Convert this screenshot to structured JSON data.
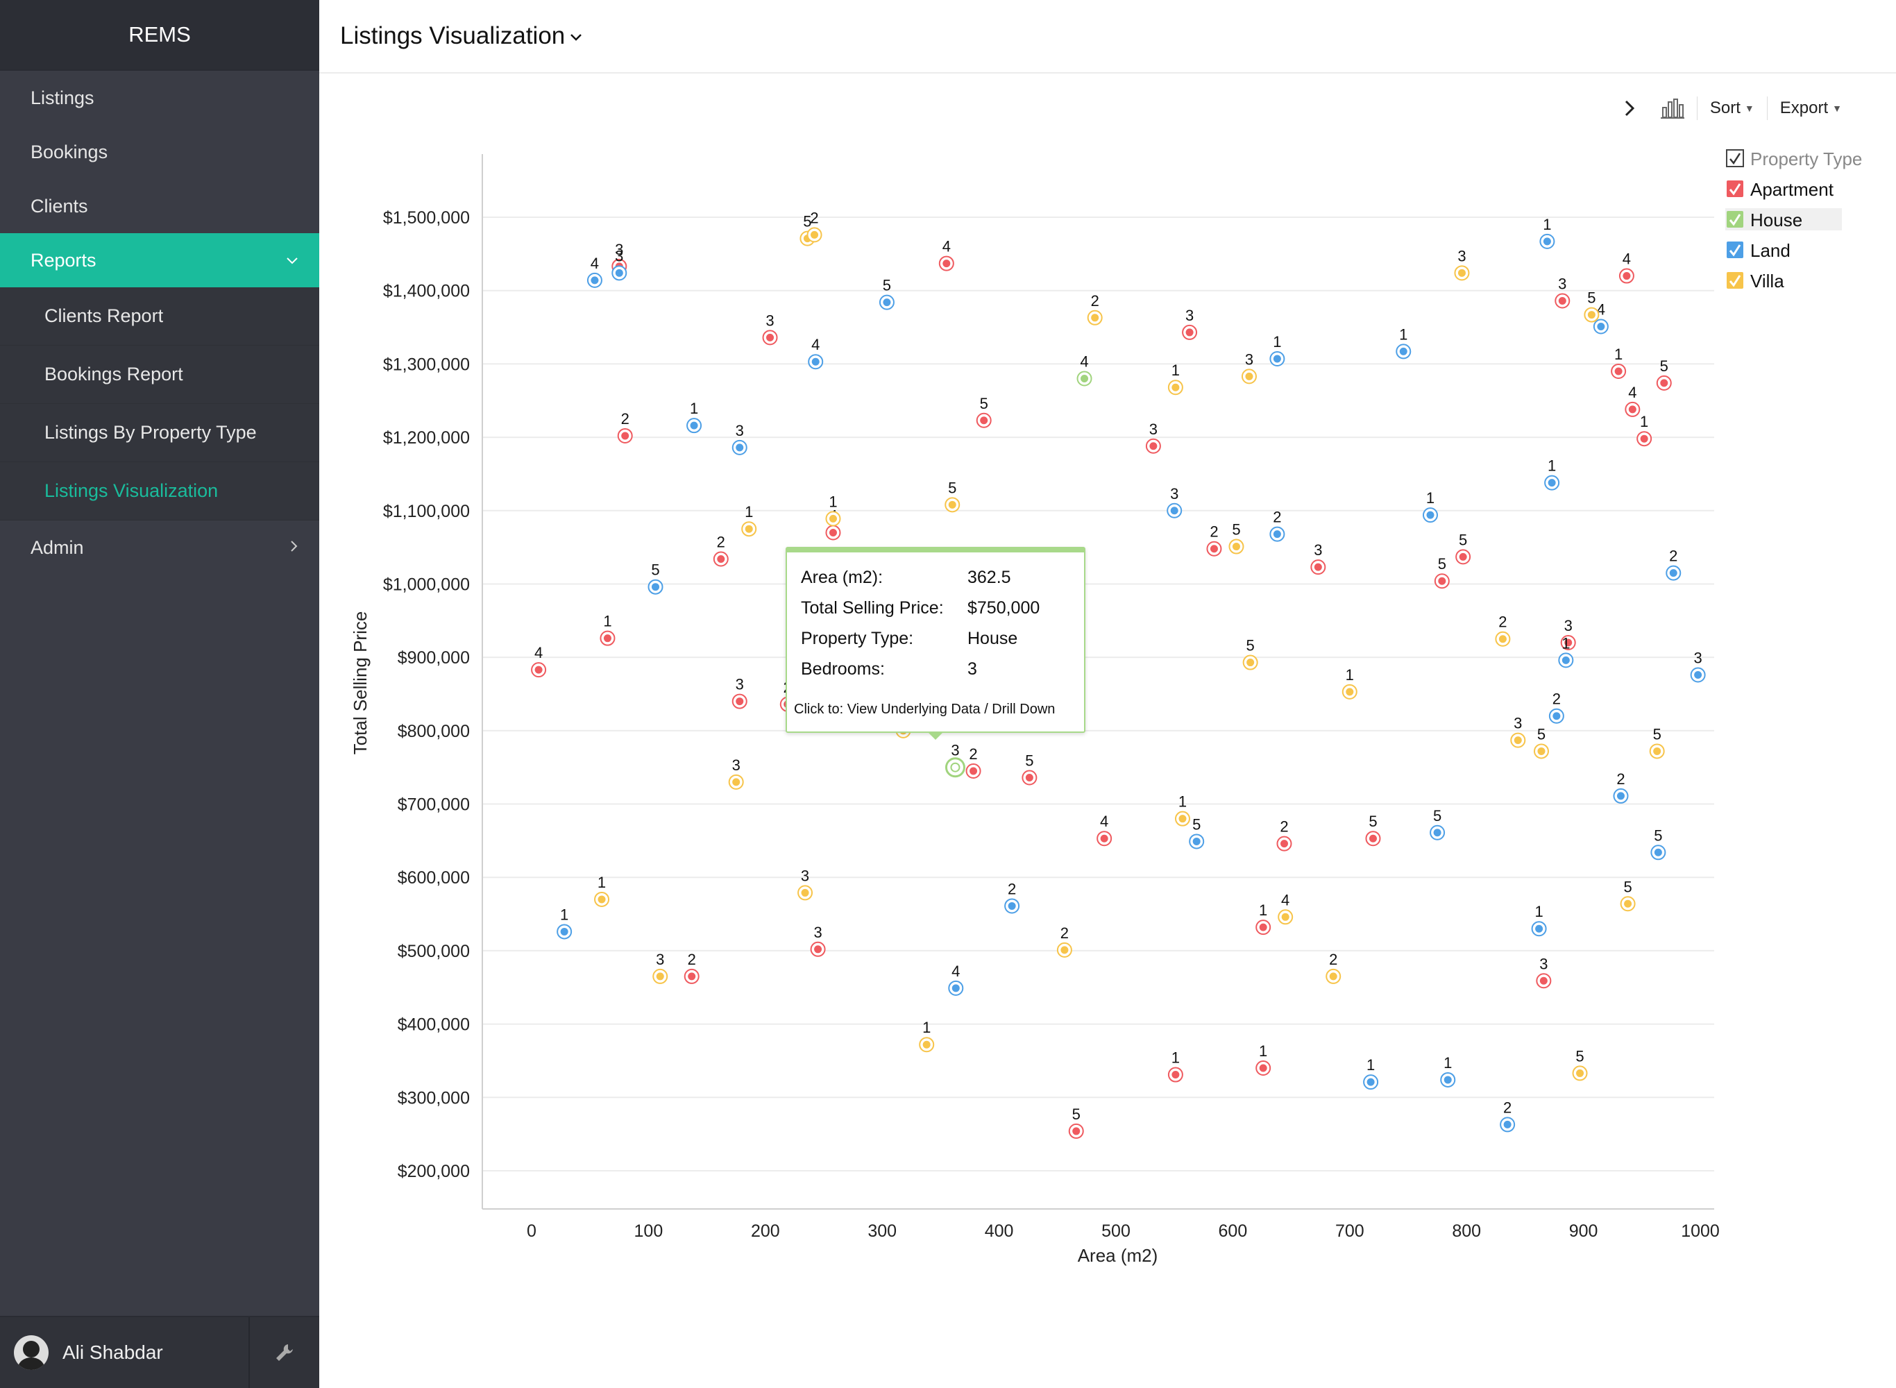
{
  "app": {
    "brand": "REMS"
  },
  "sidebar": {
    "items": [
      {
        "label": "Listings"
      },
      {
        "label": "Bookings"
      },
      {
        "label": "Clients"
      },
      {
        "label": "Reports"
      },
      {
        "label": "Admin"
      }
    ],
    "reports_sub": [
      {
        "label": "Clients Report"
      },
      {
        "label": "Bookings Report"
      },
      {
        "label": "Listings By Property Type"
      },
      {
        "label": "Listings Visualization"
      }
    ]
  },
  "user": {
    "name": "Ali Shabdar"
  },
  "header": {
    "title": "Listings Visualization"
  },
  "toolbar": {
    "sort_label": "Sort",
    "export_label": "Export"
  },
  "tooltip": {
    "area_key": "Area (m2):",
    "area_val": "362.5",
    "price_key": "Total Selling Price:",
    "price_val": "$750,000",
    "type_key": "Property Type:",
    "type_val": "House",
    "bed_key": "Bedrooms:",
    "bed_val": "3",
    "foot_prefix": "Click to:",
    "foot_text": "View Underlying Data / Drill Down"
  },
  "colors": {
    "Apartment": "#ef5a5f",
    "House": "#a1d47e",
    "Land": "#4d9fe6",
    "Villa": "#f7c44a",
    "accent": "#1abc9c"
  },
  "chart_data": {
    "type": "scatter",
    "xlabel": "Area (m2)",
    "ylabel": "Total Selling Price",
    "xlim": [
      0,
      1000
    ],
    "ylim": [
      200000,
      1500000
    ],
    "xticks": [
      "0",
      "100",
      "200",
      "300",
      "400",
      "500",
      "600",
      "700",
      "800",
      "900",
      "1000"
    ],
    "yticks": [
      "$200,000",
      "$300,000",
      "$400,000",
      "$500,000",
      "$600,000",
      "$700,000",
      "$800,000",
      "$900,000",
      "$1,000,000",
      "$1,100,000",
      "$1,200,000",
      "$1,300,000",
      "$1,400,000",
      "$1,500,000"
    ],
    "legend": {
      "title": "Property Type",
      "entries": [
        "Apartment",
        "House",
        "Land",
        "Villa"
      ],
      "position": "top-right"
    },
    "series": [
      {
        "name": "Apartment",
        "points": [
          {
            "x": 75,
            "y": 1433000,
            "label": "3"
          },
          {
            "x": 355,
            "y": 1437000,
            "label": "4"
          },
          {
            "x": 204,
            "y": 1336000,
            "label": "3"
          },
          {
            "x": 80,
            "y": 1202000,
            "label": "2"
          },
          {
            "x": 387,
            "y": 1223000,
            "label": "5"
          },
          {
            "x": 532,
            "y": 1188000,
            "label": "3"
          },
          {
            "x": 563,
            "y": 1343000,
            "label": "3"
          },
          {
            "x": 162,
            "y": 1034000,
            "label": "2"
          },
          {
            "x": 258,
            "y": 1070000,
            "label": "4"
          },
          {
            "x": 584,
            "y": 1048000,
            "label": "2"
          },
          {
            "x": 673,
            "y": 1023000,
            "label": "3"
          },
          {
            "x": 797,
            "y": 1037000,
            "label": "5"
          },
          {
            "x": 779,
            "y": 1004000,
            "label": "5"
          },
          {
            "x": 6,
            "y": 883000,
            "label": "4"
          },
          {
            "x": 65,
            "y": 926000,
            "label": "1"
          },
          {
            "x": 178,
            "y": 840000,
            "label": "3"
          },
          {
            "x": 219,
            "y": 836000,
            "label": "2"
          },
          {
            "x": 378,
            "y": 745000,
            "label": "2"
          },
          {
            "x": 426,
            "y": 736000,
            "label": "5"
          },
          {
            "x": 490,
            "y": 653000,
            "label": "4"
          },
          {
            "x": 644,
            "y": 646000,
            "label": "2"
          },
          {
            "x": 720,
            "y": 653000,
            "label": "5"
          },
          {
            "x": 137,
            "y": 465000,
            "label": "2"
          },
          {
            "x": 245,
            "y": 502000,
            "label": "3"
          },
          {
            "x": 626,
            "y": 532000,
            "label": "1"
          },
          {
            "x": 466,
            "y": 254000,
            "label": "5"
          },
          {
            "x": 551,
            "y": 331000,
            "label": "1"
          },
          {
            "x": 626,
            "y": 340000,
            "label": "1"
          },
          {
            "x": 866,
            "y": 459000,
            "label": "3"
          },
          {
            "x": 887,
            "y": 920000,
            "label": "3"
          },
          {
            "x": 882,
            "y": 1386000,
            "label": "3"
          },
          {
            "x": 937,
            "y": 1420000,
            "label": "4"
          },
          {
            "x": 930,
            "y": 1290000,
            "label": "1"
          },
          {
            "x": 969,
            "y": 1274000,
            "label": "5"
          },
          {
            "x": 942,
            "y": 1238000,
            "label": "4"
          },
          {
            "x": 952,
            "y": 1198000,
            "label": "1"
          }
        ]
      },
      {
        "name": "House",
        "points": [
          {
            "x": 473,
            "y": 1280000,
            "label": "4"
          },
          {
            "x": 362.5,
            "y": 750000,
            "label": "3"
          }
        ]
      },
      {
        "name": "Land",
        "points": [
          {
            "x": 54,
            "y": 1414000,
            "label": "4"
          },
          {
            "x": 75,
            "y": 1424000,
            "label": "3"
          },
          {
            "x": 304,
            "y": 1384000,
            "label": "5"
          },
          {
            "x": 243,
            "y": 1303000,
            "label": "4"
          },
          {
            "x": 139,
            "y": 1216000,
            "label": "1"
          },
          {
            "x": 178,
            "y": 1186000,
            "label": "3"
          },
          {
            "x": 106,
            "y": 996000,
            "label": "5"
          },
          {
            "x": 550,
            "y": 1100000,
            "label": "3"
          },
          {
            "x": 638,
            "y": 1307000,
            "label": "1"
          },
          {
            "x": 746,
            "y": 1317000,
            "label": "1"
          },
          {
            "x": 638,
            "y": 1068000,
            "label": "2"
          },
          {
            "x": 769,
            "y": 1094000,
            "label": "1"
          },
          {
            "x": 869,
            "y": 1467000,
            "label": "1"
          },
          {
            "x": 873,
            "y": 1138000,
            "label": "1"
          },
          {
            "x": 915,
            "y": 1351000,
            "label": "4"
          },
          {
            "x": 977,
            "y": 1015000,
            "label": "2"
          },
          {
            "x": 885,
            "y": 896000,
            "label": "1"
          },
          {
            "x": 998,
            "y": 876000,
            "label": "3"
          },
          {
            "x": 877,
            "y": 820000,
            "label": "2"
          },
          {
            "x": 932,
            "y": 711000,
            "label": "2"
          },
          {
            "x": 964,
            "y": 634000,
            "label": "5"
          },
          {
            "x": 569,
            "y": 649000,
            "label": "5"
          },
          {
            "x": 775,
            "y": 661000,
            "label": "5"
          },
          {
            "x": 411,
            "y": 561000,
            "label": "2"
          },
          {
            "x": 28,
            "y": 526000,
            "label": "1"
          },
          {
            "x": 363,
            "y": 449000,
            "label": "4"
          },
          {
            "x": 862,
            "y": 530000,
            "label": "1"
          },
          {
            "x": 718,
            "y": 321000,
            "label": "1"
          },
          {
            "x": 784,
            "y": 324000,
            "label": "1"
          },
          {
            "x": 835,
            "y": 263000,
            "label": "2"
          }
        ]
      },
      {
        "name": "Villa",
        "points": [
          {
            "x": 236,
            "y": 1471000,
            "label": "5"
          },
          {
            "x": 242,
            "y": 1476000,
            "label": "2"
          },
          {
            "x": 482,
            "y": 1363000,
            "label": "2"
          },
          {
            "x": 551,
            "y": 1268000,
            "label": "1"
          },
          {
            "x": 614,
            "y": 1283000,
            "label": "3"
          },
          {
            "x": 796,
            "y": 1424000,
            "label": "3"
          },
          {
            "x": 907,
            "y": 1367000,
            "label": "5"
          },
          {
            "x": 186,
            "y": 1075000,
            "label": "1"
          },
          {
            "x": 258,
            "y": 1089000,
            "label": "1"
          },
          {
            "x": 360,
            "y": 1108000,
            "label": "5"
          },
          {
            "x": 603,
            "y": 1051000,
            "label": "5"
          },
          {
            "x": 615,
            "y": 893000,
            "label": "5"
          },
          {
            "x": 831,
            "y": 925000,
            "label": "2"
          },
          {
            "x": 700,
            "y": 853000,
            "label": "1"
          },
          {
            "x": 844,
            "y": 787000,
            "label": "3"
          },
          {
            "x": 864,
            "y": 772000,
            "label": "5"
          },
          {
            "x": 963,
            "y": 772000,
            "label": "5"
          },
          {
            "x": 175,
            "y": 730000,
            "label": "3"
          },
          {
            "x": 318,
            "y": 800000,
            "label": "2"
          },
          {
            "x": 557,
            "y": 680000,
            "label": "1"
          },
          {
            "x": 60,
            "y": 570000,
            "label": "1"
          },
          {
            "x": 234,
            "y": 579000,
            "label": "3"
          },
          {
            "x": 110,
            "y": 465000,
            "label": "3"
          },
          {
            "x": 456,
            "y": 501000,
            "label": "2"
          },
          {
            "x": 645,
            "y": 546000,
            "label": "4"
          },
          {
            "x": 686,
            "y": 465000,
            "label": "2"
          },
          {
            "x": 338,
            "y": 372000,
            "label": "1"
          },
          {
            "x": 938,
            "y": 564000,
            "label": "5"
          },
          {
            "x": 897,
            "y": 333000,
            "label": "5"
          }
        ]
      }
    ]
  }
}
